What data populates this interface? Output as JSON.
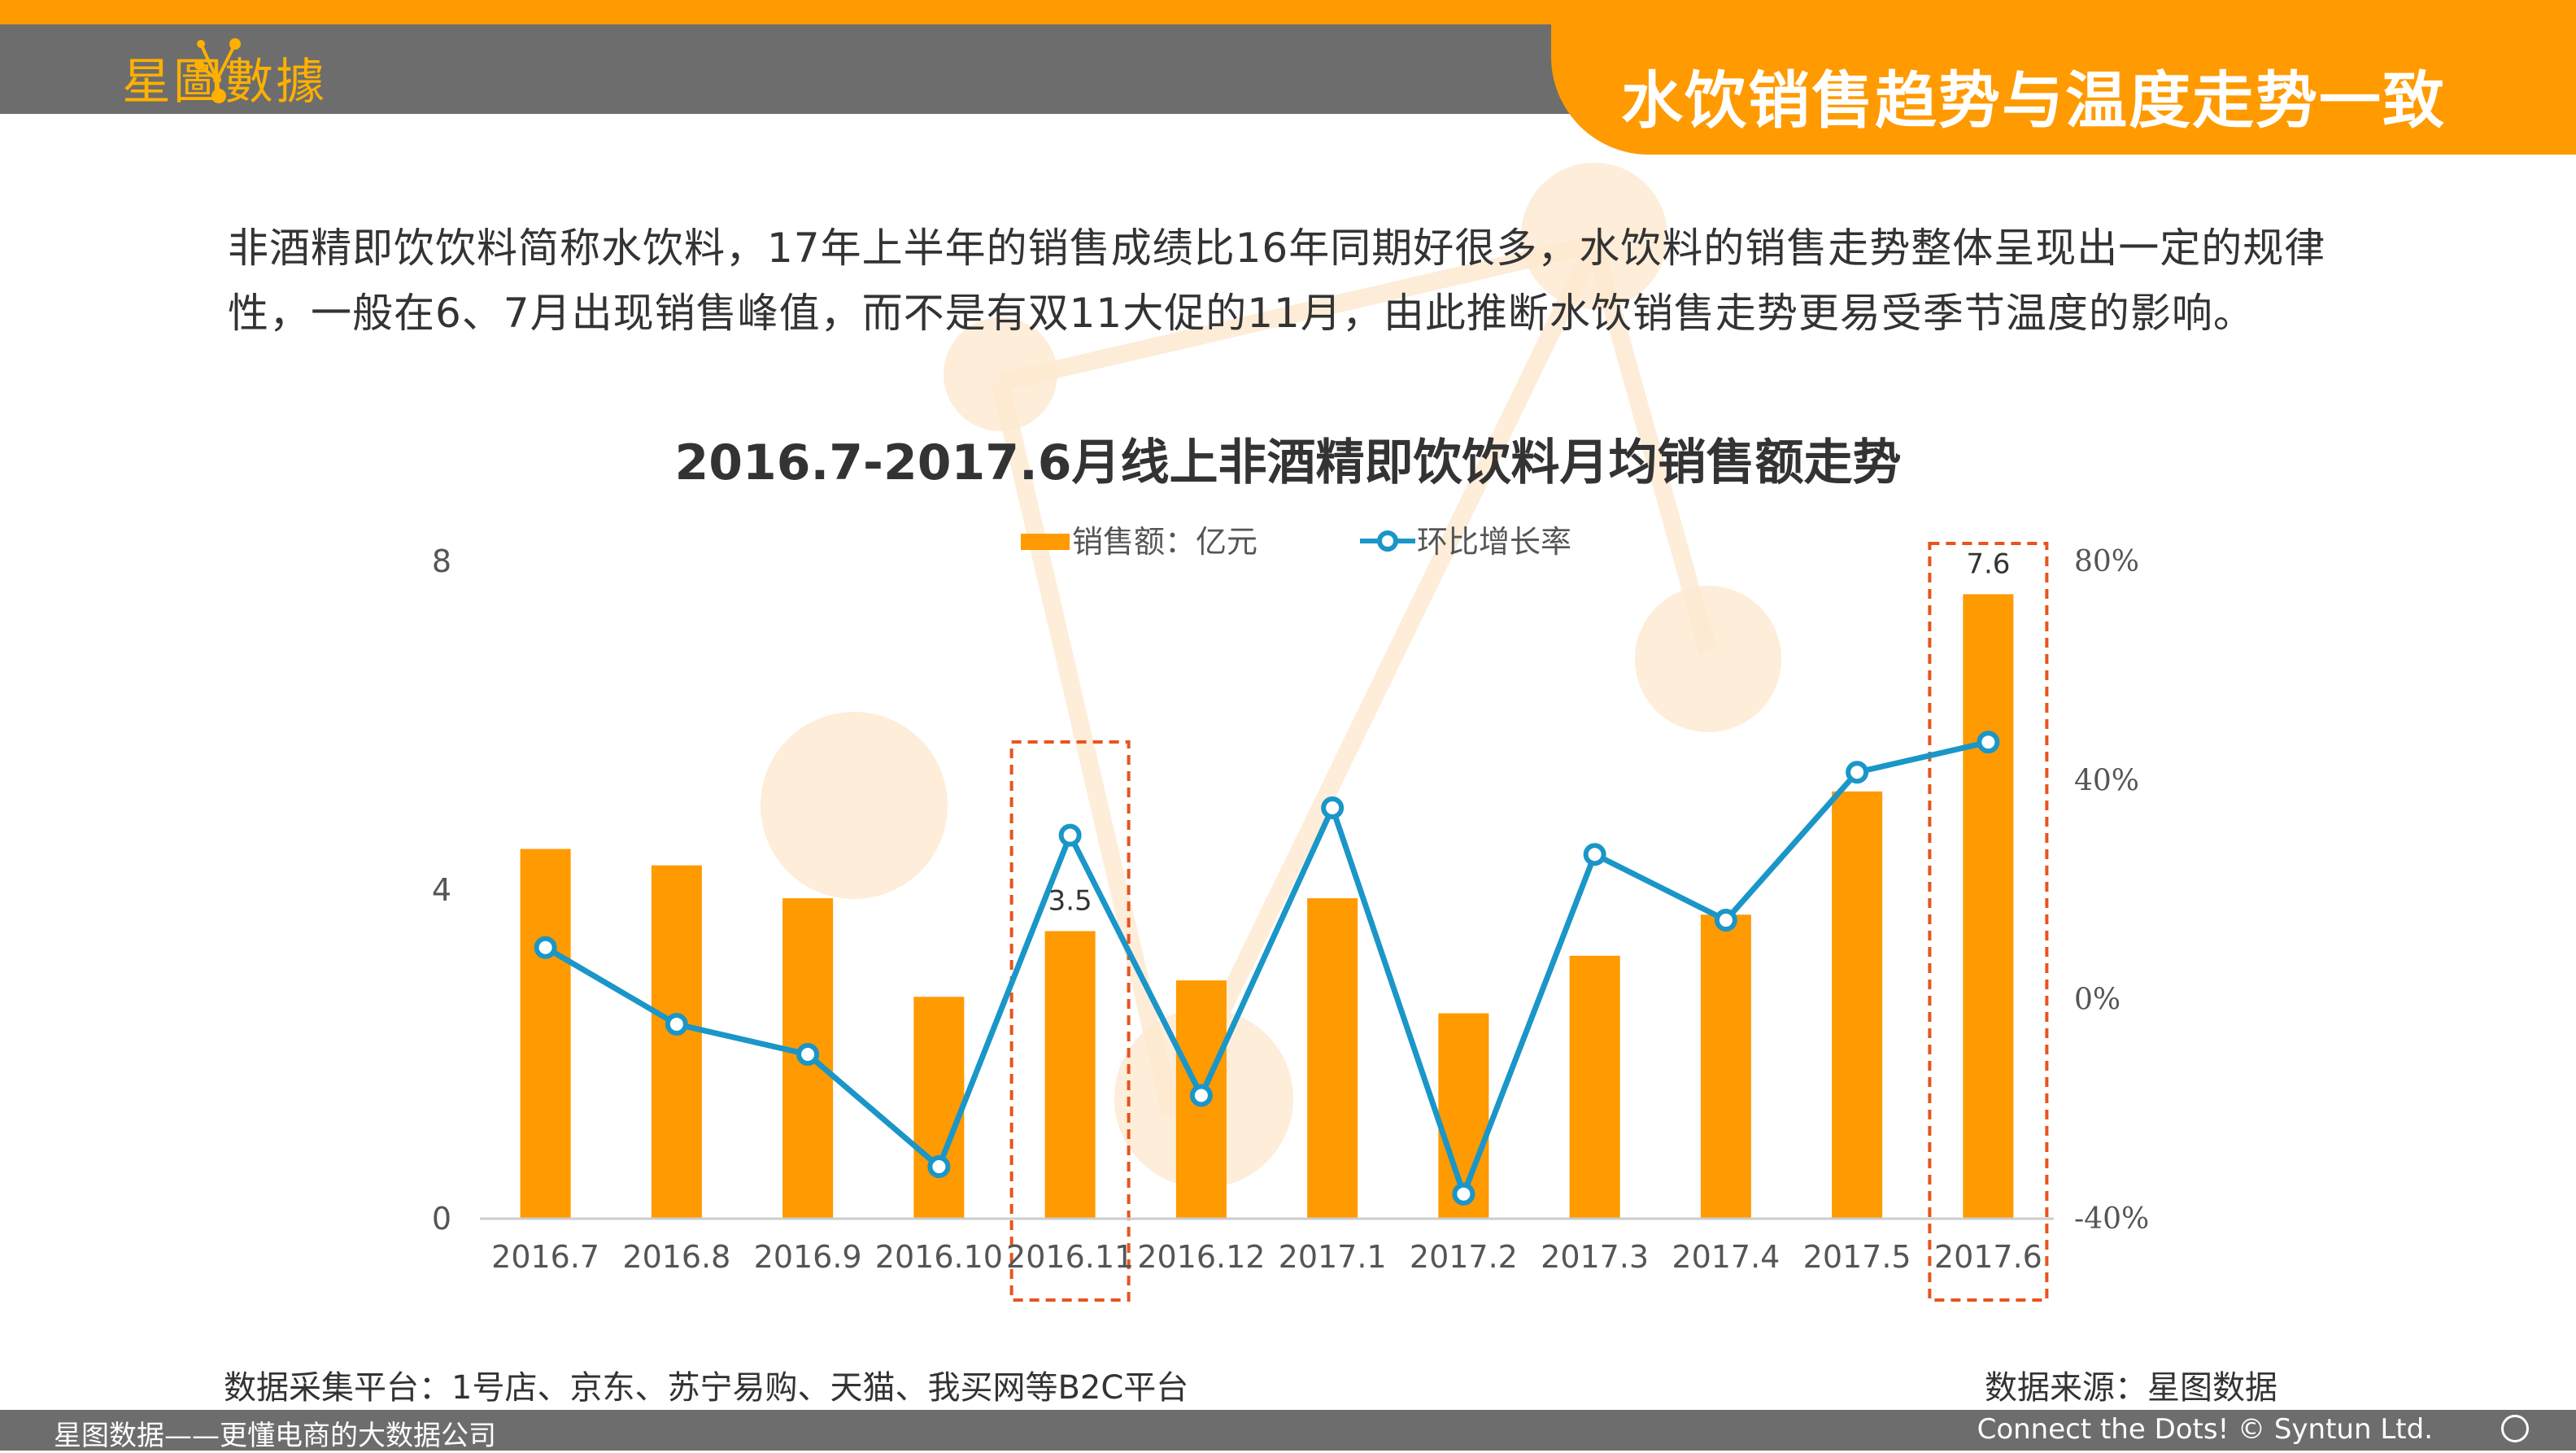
{
  "header": {
    "logo_text": "星圖數據",
    "title": "水饮销售趋势与温度走势一致"
  },
  "intro": "非酒精即饮饮料简称水饮料，17年上半年的销售成绩比16年同期好很多，水饮料的销售走势整体呈现出一定的规律性，一般在6、7月出现销售峰值，而不是有双11大促的11月，由此推断水饮销售走势更易受季节温度的影响。",
  "chart_data": {
    "type": "bar+line",
    "title": "2016.7-2017.6月线上非酒精即饮饮料月均销售额走势",
    "categories": [
      "2016.7",
      "2016.8",
      "2016.9",
      "2016.10",
      "2016.11",
      "2016.12",
      "2017.1",
      "2017.2",
      "2017.3",
      "2017.4",
      "2017.5",
      "2017.6"
    ],
    "series": [
      {
        "name": "销售额：亿元",
        "kind": "bar",
        "axis": "left",
        "color": "#ff9a00",
        "values": [
          4.5,
          4.3,
          3.9,
          2.7,
          3.5,
          2.9,
          3.9,
          2.5,
          3.2,
          3.7,
          5.2,
          7.6
        ]
      },
      {
        "name": "环比增长率",
        "kind": "line",
        "axis": "right",
        "color": "#1a96c8",
        "values": [
          9.5,
          -4.5,
          -10,
          -30.5,
          30,
          -17.5,
          35,
          -35.5,
          26.5,
          14.5,
          41.5,
          47
        ]
      }
    ],
    "y_left": {
      "min": 0,
      "max": 8,
      "ticks": [
        "0",
        "4",
        "8"
      ]
    },
    "y_right": {
      "min": -40,
      "max": 80,
      "ticks": [
        "-40%",
        "0%",
        "40%",
        "80%"
      ]
    },
    "data_labels": [
      {
        "index": 4,
        "text": "3.5"
      },
      {
        "index": 11,
        "text": "7.6"
      }
    ],
    "highlighted_categories": [
      4,
      11
    ],
    "legend_position": "top-center"
  },
  "footnotes": {
    "platforms": "数据采集平台：1号店、京东、苏宁易购、天猫、我买网等B2C平台",
    "source": "数据来源：星图数据"
  },
  "footer": {
    "left": "星图数据——更懂电商的大数据公司",
    "right": "Connect the Dots! © Syntun Ltd."
  },
  "colors": {
    "accent": "#ff9a00",
    "bar_grey": "#6d6d6d",
    "line": "#1a96c8",
    "highlight": "#e8541e"
  }
}
